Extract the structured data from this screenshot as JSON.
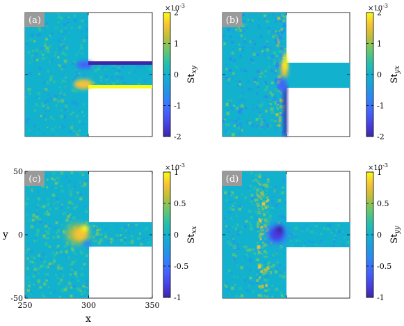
{
  "chart_data": [
    {
      "type": "heatmap",
      "panel_label": "(a)",
      "colorbar": {
        "label": "St",
        "subscript": "xy",
        "exponent": "×10-3",
        "exp_base": "×10",
        "exp_power": "-3",
        "range": [
          -2,
          2
        ],
        "ticks": [
          "2",
          "1",
          "0",
          "-1",
          "-2"
        ],
        "tick_values": [
          2,
          1,
          0,
          -1,
          -2
        ]
      },
      "features": [
        "strong negative band along upper channel wall",
        "strong positive band along lower channel wall",
        "mixed values near channel entrance"
      ]
    },
    {
      "type": "heatmap",
      "panel_label": "(b)",
      "colorbar": {
        "label": "St",
        "subscript": "yx",
        "exponent": "×10-3",
        "exp_base": "×10",
        "exp_power": "-3",
        "range": [
          -2,
          2
        ],
        "ticks": [
          "2",
          "1",
          "0",
          "-1",
          "-2"
        ],
        "tick_values": [
          2,
          1,
          0,
          -1,
          -2
        ]
      },
      "features": [
        "positive values at upper corner of wall x=300",
        "negative values along lower corner of wall x=300",
        "speckled noise in reservoir"
      ]
    },
    {
      "type": "heatmap",
      "panel_label": "(c)",
      "xlabel": "x",
      "ylabel": "y",
      "xlim": [
        250,
        350
      ],
      "ylim": [
        -50,
        50
      ],
      "xticks": [
        "250",
        "300",
        "350"
      ],
      "xtick_values": [
        250,
        300,
        350
      ],
      "yticks": [
        "50",
        "0",
        "-50"
      ],
      "ytick_values": [
        50,
        0,
        -50
      ],
      "geometry": {
        "reservoir_x": [
          250,
          300
        ],
        "reservoir_y": [
          -50,
          50
        ],
        "channel_x": [
          300,
          350
        ],
        "channel_y": [
          -10,
          10
        ]
      },
      "colorbar": {
        "label": "St",
        "subscript": "xx",
        "exponent": "×10-3",
        "exp_base": "×10",
        "exp_power": "-3",
        "range": [
          -1,
          1
        ],
        "ticks": [
          "1",
          "0.5",
          "0",
          "-0.5",
          "-1"
        ],
        "tick_values": [
          1,
          0.5,
          0,
          -0.5,
          -1
        ]
      },
      "features": [
        "positive (yellow) region near channel entrance around x≈290, y≈0"
      ]
    },
    {
      "type": "heatmap",
      "panel_label": "(d)",
      "colorbar": {
        "label": "St",
        "subscript": "yy",
        "exponent": "×10-3",
        "exp_base": "×10",
        "exp_power": "-3",
        "range": [
          -1,
          1
        ],
        "ticks": [
          "1",
          "0.5",
          "0",
          "-0.5",
          "-1"
        ],
        "tick_values": [
          1,
          0.5,
          0,
          -0.5,
          -1
        ]
      },
      "features": [
        "negative (dark blue) region near channel entrance around x≈290, y≈0",
        "yellow speckle band around x≈285"
      ]
    }
  ]
}
